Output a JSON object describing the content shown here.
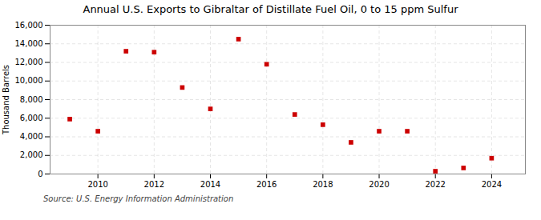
{
  "chart_data": {
    "type": "scatter",
    "title": "Annual U.S. Exports to Gibraltar of Distillate Fuel Oil, 0 to 15 ppm Sulfur",
    "ylabel": "Thousand Barrels",
    "source": "Source: U.S. Energy Information Administration",
    "x": [
      2009,
      2010,
      2011,
      2012,
      2013,
      2014,
      2015,
      2016,
      2017,
      2018,
      2019,
      2020,
      2021,
      2022,
      2023,
      2024
    ],
    "values": [
      5900,
      4600,
      13200,
      13100,
      9300,
      7000,
      14500,
      11800,
      6400,
      5300,
      3400,
      4600,
      4600,
      300,
      650,
      1700
    ],
    "color": "#cc0000",
    "marker": "square",
    "xlim": [
      2008.3,
      2025.2
    ],
    "xticks": [
      2010,
      2012,
      2014,
      2016,
      2018,
      2020,
      2022,
      2024
    ],
    "ylim": [
      0,
      16000
    ],
    "yticks": [
      0,
      {
        "value": 2000,
        "label": "2,000"
      },
      {
        "value": 4000,
        "label": "4,000"
      },
      {
        "value": 6000,
        "label": "6,000"
      },
      {
        "value": 8000,
        "label": "8,000"
      },
      {
        "value": 10000,
        "label": "10,000"
      },
      {
        "value": 12000,
        "label": "12,000"
      },
      {
        "value": 14000,
        "label": "14,000"
      },
      {
        "value": 16000,
        "label": "16,000"
      }
    ],
    "grid": true
  }
}
